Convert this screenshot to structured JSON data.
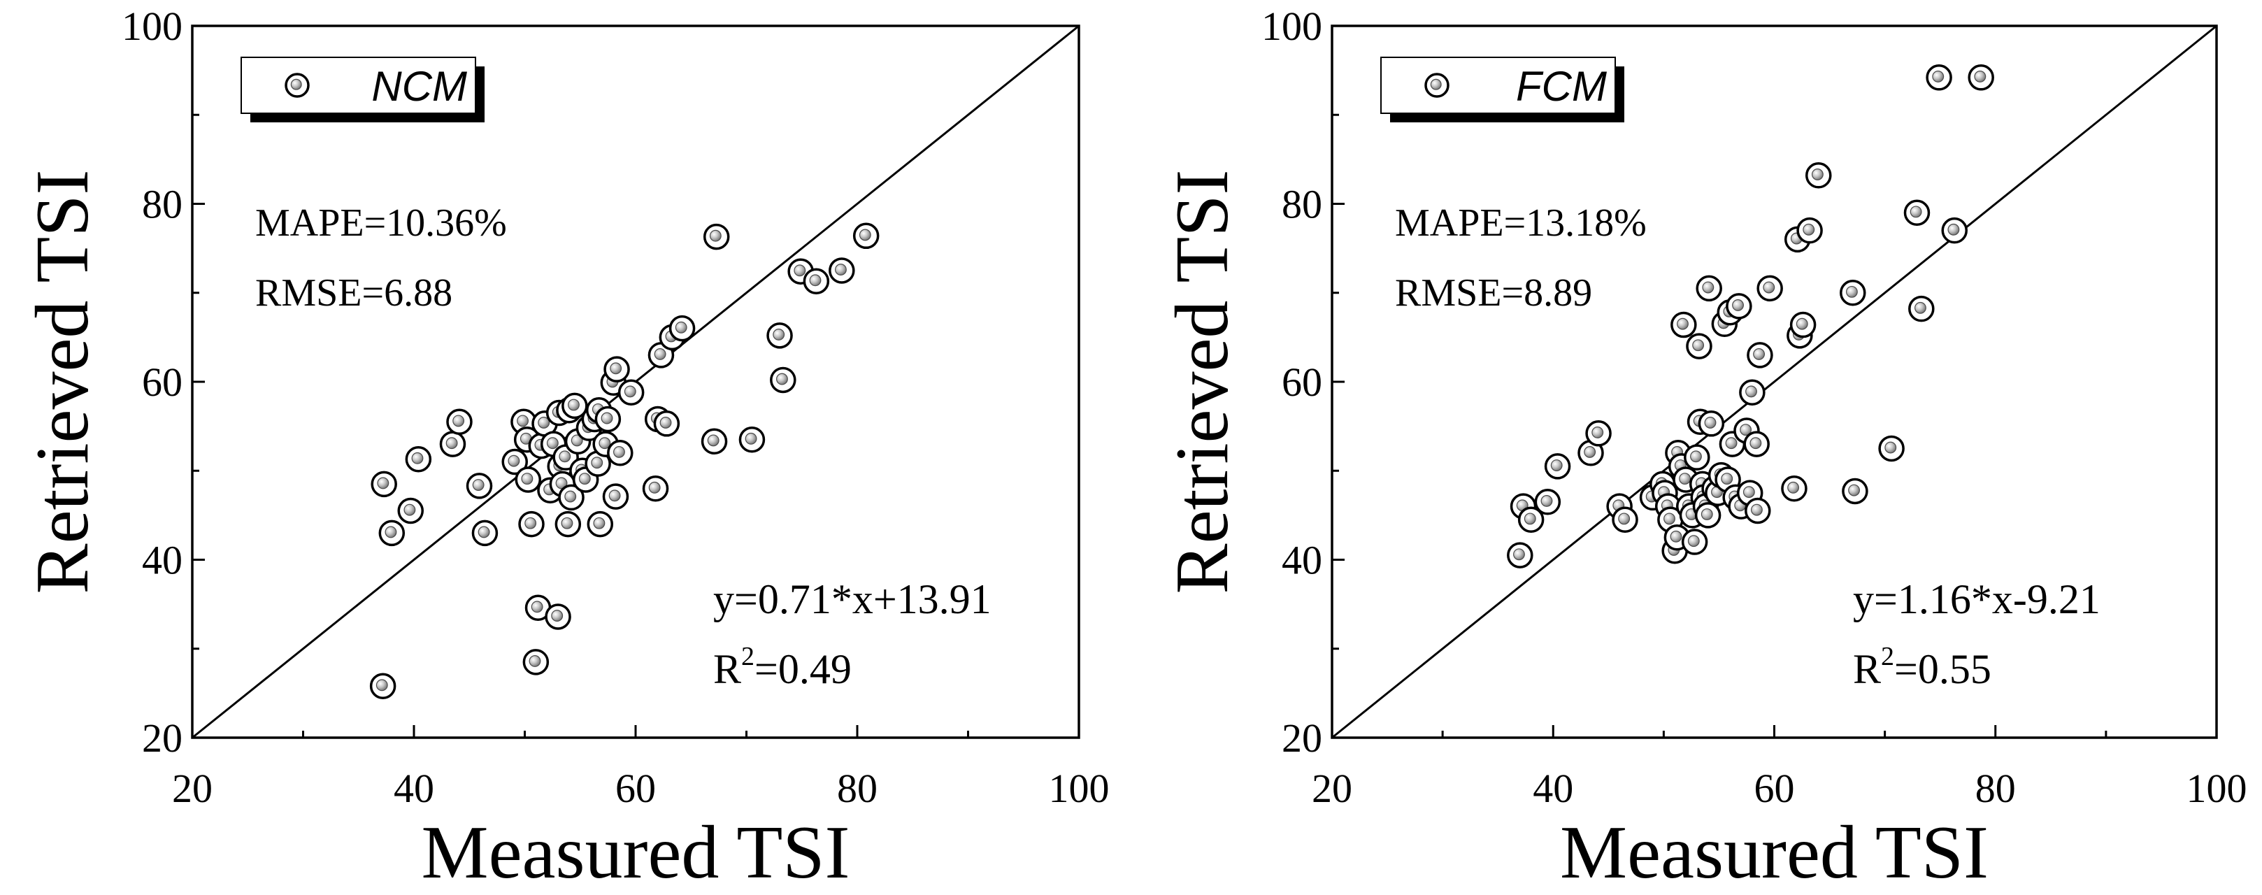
{
  "chart_data": [
    {
      "type": "scatter",
      "xlabel": "Measured TSI",
      "ylabel": "Retrieved TSI",
      "xlim": [
        20,
        100
      ],
      "ylim": [
        20,
        100
      ],
      "xticks": [
        20,
        40,
        60,
        80,
        100
      ],
      "yticks": [
        20,
        40,
        60,
        80,
        100
      ],
      "xtick_labels": [
        "20",
        "40",
        "60",
        "80",
        "100"
      ],
      "ytick_labels": [
        "20",
        "40",
        "60",
        "80",
        "100"
      ],
      "grid": false,
      "reference_line": "1:1",
      "legend": {
        "label": "NCM",
        "placement": "top-left"
      },
      "stats": {
        "mape": "MAPE=10.36%",
        "rmse": "RMSE=6.88"
      },
      "fit": {
        "equation": "y=0.71*x+13.91",
        "r2_prefix": "R",
        "r2_sup": "2",
        "r2_suffix": "=0.49"
      },
      "series": [
        {
          "points": [
            [
              37.2,
              25.8
            ],
            [
              37.3,
              48.5
            ],
            [
              38.0,
              43.0
            ],
            [
              39.7,
              45.5
            ],
            [
              40.4,
              51.3
            ],
            [
              43.5,
              53.0
            ],
            [
              44.1,
              55.5
            ],
            [
              45.9,
              48.3
            ],
            [
              46.4,
              43.0
            ],
            [
              49.1,
              51.0
            ],
            [
              49.9,
              55.5
            ],
            [
              50.2,
              53.5
            ],
            [
              50.3,
              49.0
            ],
            [
              50.6,
              44.0
            ],
            [
              51.0,
              28.5
            ],
            [
              51.2,
              34.6
            ],
            [
              51.5,
              52.8
            ],
            [
              51.8,
              55.3
            ],
            [
              52.3,
              47.8
            ],
            [
              52.6,
              53.0
            ],
            [
              53.0,
              33.6
            ],
            [
              53.1,
              56.5
            ],
            [
              53.2,
              50.5
            ],
            [
              53.4,
              48.5
            ],
            [
              53.7,
              51.5
            ],
            [
              53.9,
              44.0
            ],
            [
              54.0,
              56.8
            ],
            [
              54.2,
              47.0
            ],
            [
              54.5,
              57.3
            ],
            [
              54.8,
              53.3
            ],
            [
              55.2,
              50.0
            ],
            [
              55.5,
              49.0
            ],
            [
              55.8,
              54.8
            ],
            [
              56.3,
              55.8
            ],
            [
              56.6,
              50.8
            ],
            [
              56.7,
              56.8
            ],
            [
              56.8,
              44.0
            ],
            [
              57.3,
              53.0
            ],
            [
              57.5,
              55.8
            ],
            [
              58.0,
              59.9
            ],
            [
              58.2,
              47.1
            ],
            [
              58.3,
              61.4
            ],
            [
              58.6,
              52.0
            ],
            [
              59.6,
              58.8
            ],
            [
              61.8,
              48.0
            ],
            [
              62.0,
              55.8
            ],
            [
              62.3,
              63.0
            ],
            [
              62.8,
              55.3
            ],
            [
              63.3,
              65.0
            ],
            [
              64.2,
              66.0
            ],
            [
              67.1,
              53.3
            ],
            [
              67.3,
              76.3
            ],
            [
              70.5,
              53.5
            ],
            [
              73.0,
              65.2
            ],
            [
              73.3,
              60.2
            ],
            [
              74.9,
              72.4
            ],
            [
              76.3,
              71.3
            ],
            [
              78.6,
              72.5
            ],
            [
              80.8,
              76.4
            ]
          ]
        }
      ]
    },
    {
      "type": "scatter",
      "xlabel": "Measured TSI",
      "ylabel": "Retrieved TSI",
      "xlim": [
        20,
        100
      ],
      "ylim": [
        20,
        100
      ],
      "xticks": [
        20,
        40,
        60,
        80,
        100
      ],
      "yticks": [
        20,
        40,
        60,
        80,
        100
      ],
      "xtick_labels": [
        "20",
        "40",
        "60",
        "80",
        "100"
      ],
      "ytick_labels": [
        "20",
        "40",
        "60",
        "80",
        "100"
      ],
      "grid": false,
      "reference_line": "1:1",
      "legend": {
        "label": "FCM",
        "placement": "top-left"
      },
      "stats": {
        "mape": "MAPE=13.18%",
        "rmse": "RMSE=8.89"
      },
      "fit": {
        "equation": "y=1.16*x-9.21",
        "r2_prefix": "R",
        "r2_sup": "2",
        "r2_suffix": "=0.55"
      },
      "series": [
        {
          "points": [
            [
              37.0,
              40.5
            ],
            [
              37.3,
              46.0
            ],
            [
              38.0,
              44.5
            ],
            [
              39.5,
              46.5
            ],
            [
              40.4,
              50.5
            ],
            [
              43.4,
              52.0
            ],
            [
              44.1,
              54.2
            ],
            [
              46.0,
              46.0
            ],
            [
              46.5,
              44.5
            ],
            [
              49.0,
              47.0
            ],
            [
              49.9,
              48.5
            ],
            [
              50.1,
              47.5
            ],
            [
              50.4,
              46.0
            ],
            [
              50.6,
              44.5
            ],
            [
              51.0,
              41.0
            ],
            [
              51.2,
              42.5
            ],
            [
              51.3,
              52.0
            ],
            [
              51.6,
              50.5
            ],
            [
              51.8,
              66.4
            ],
            [
              52.0,
              49.0
            ],
            [
              52.3,
              46.0
            ],
            [
              52.6,
              45.0
            ],
            [
              52.8,
              42.0
            ],
            [
              53.0,
              51.5
            ],
            [
              53.2,
              64.0
            ],
            [
              53.3,
              55.5
            ],
            [
              53.5,
              48.5
            ],
            [
              53.6,
              47.0
            ],
            [
              53.8,
              46.0
            ],
            [
              54.0,
              45.0
            ],
            [
              54.1,
              70.5
            ],
            [
              54.3,
              55.3
            ],
            [
              54.6,
              48.0
            ],
            [
              54.9,
              47.5
            ],
            [
              55.2,
              49.5
            ],
            [
              55.5,
              66.5
            ],
            [
              55.8,
              49.0
            ],
            [
              56.0,
              67.8
            ],
            [
              56.2,
              53.0
            ],
            [
              56.5,
              47.0
            ],
            [
              56.8,
              68.5
            ],
            [
              57.0,
              46.0
            ],
            [
              57.5,
              54.5
            ],
            [
              57.8,
              47.5
            ],
            [
              58.0,
              58.8
            ],
            [
              58.4,
              53.0
            ],
            [
              58.5,
              45.5
            ],
            [
              58.7,
              63.0
            ],
            [
              59.6,
              70.5
            ],
            [
              61.8,
              48.0
            ],
            [
              62.1,
              76.0
            ],
            [
              62.3,
              65.2
            ],
            [
              62.6,
              66.4
            ],
            [
              63.2,
              77.0
            ],
            [
              64.0,
              83.2
            ],
            [
              67.1,
              70.0
            ],
            [
              67.3,
              47.7
            ],
            [
              70.6,
              52.5
            ],
            [
              72.9,
              79.0
            ],
            [
              73.3,
              68.2
            ],
            [
              74.9,
              94.2
            ],
            [
              76.3,
              77.0
            ],
            [
              78.7,
              94.2
            ]
          ]
        }
      ]
    }
  ]
}
